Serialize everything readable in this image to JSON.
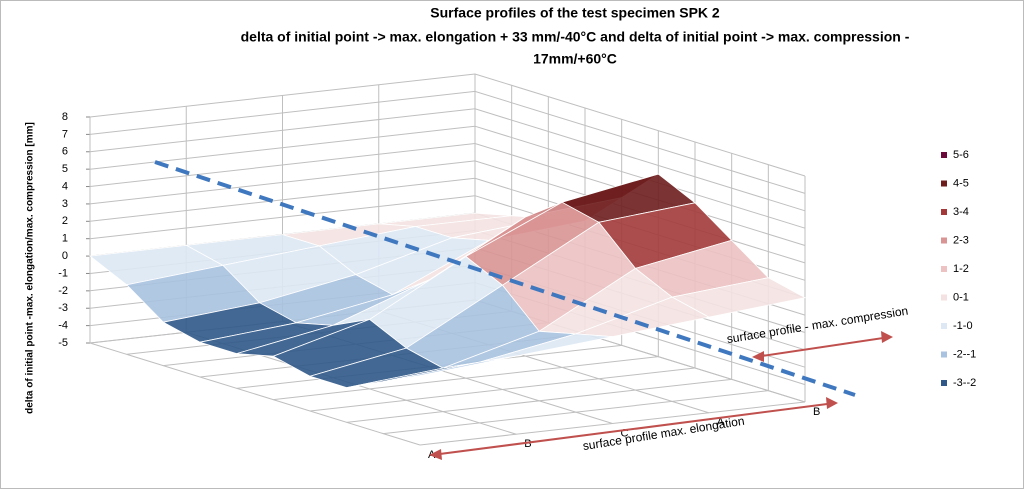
{
  "chart_data": {
    "type": "surface",
    "title": [
      "Surface profiles of  the test specimen SPK 2",
      "delta  of initial point -> max. elongation  + 33 mm/-40°C and delta  of initial point   ->  max. compression -",
      "17mm/+60°C"
    ],
    "z_label": "delta of initial point -max. elongation/max. compression [mm]",
    "zlim": [
      -5,
      8
    ],
    "zticks": [
      -5,
      -4,
      -3,
      -2,
      -1,
      0,
      1,
      2,
      3,
      4,
      5,
      6,
      7,
      8
    ],
    "grid": true,
    "rows": [
      {
        "name": "A",
        "values": [
          0,
          -1,
          -2.5,
          -3,
          -3,
          -2.5,
          -3,
          -3,
          -2,
          -1
        ]
      },
      {
        "name": "B",
        "values": [
          0,
          -0.5,
          -2,
          -2.5,
          -2,
          -1,
          -2,
          -2.5,
          -1.5,
          -0.5
        ]
      },
      {
        "name": "C",
        "values": [
          0,
          0,
          -1,
          -1.5,
          0,
          2,
          1,
          -1,
          -0.5,
          0
        ]
      },
      {
        "name": "A",
        "values": [
          0,
          0.5,
          0.5,
          1,
          3,
          4.5,
          4,
          2,
          1,
          0.5
        ]
      },
      {
        "name": "B",
        "values": [
          0,
          0.5,
          1,
          1.5,
          3.5,
          5.5,
          4.5,
          3,
          1.5,
          1
        ]
      }
    ],
    "bands": [
      {
        "label": "5-6",
        "min": 5,
        "max": 6,
        "color": "#6b0a3a"
      },
      {
        "label": "4-5",
        "min": 4,
        "max": 5,
        "color": "#6e1d1d"
      },
      {
        "label": "3-4",
        "min": 3,
        "max": 4,
        "color": "#a33a3a"
      },
      {
        "label": "2-3",
        "min": 2,
        "max": 3,
        "color": "#d99494"
      },
      {
        "label": "1-2",
        "min": 1,
        "max": 2,
        "color": "#ecc2c2"
      },
      {
        "label": "0-1",
        "min": 0,
        "max": 1,
        "color": "#f4e2e2"
      },
      {
        "label": "-1-0",
        "min": -1,
        "max": 0,
        "color": "#dde8f4"
      },
      {
        "label": "-2--1",
        "min": -2,
        "max": -1,
        "color": "#a8c2e0"
      },
      {
        "label": "-3--2",
        "min": -3,
        "max": -2,
        "color": "#2f5888"
      }
    ],
    "annotations": [
      "surface profile - max. compression",
      "surface profile  max. elongation"
    ]
  }
}
